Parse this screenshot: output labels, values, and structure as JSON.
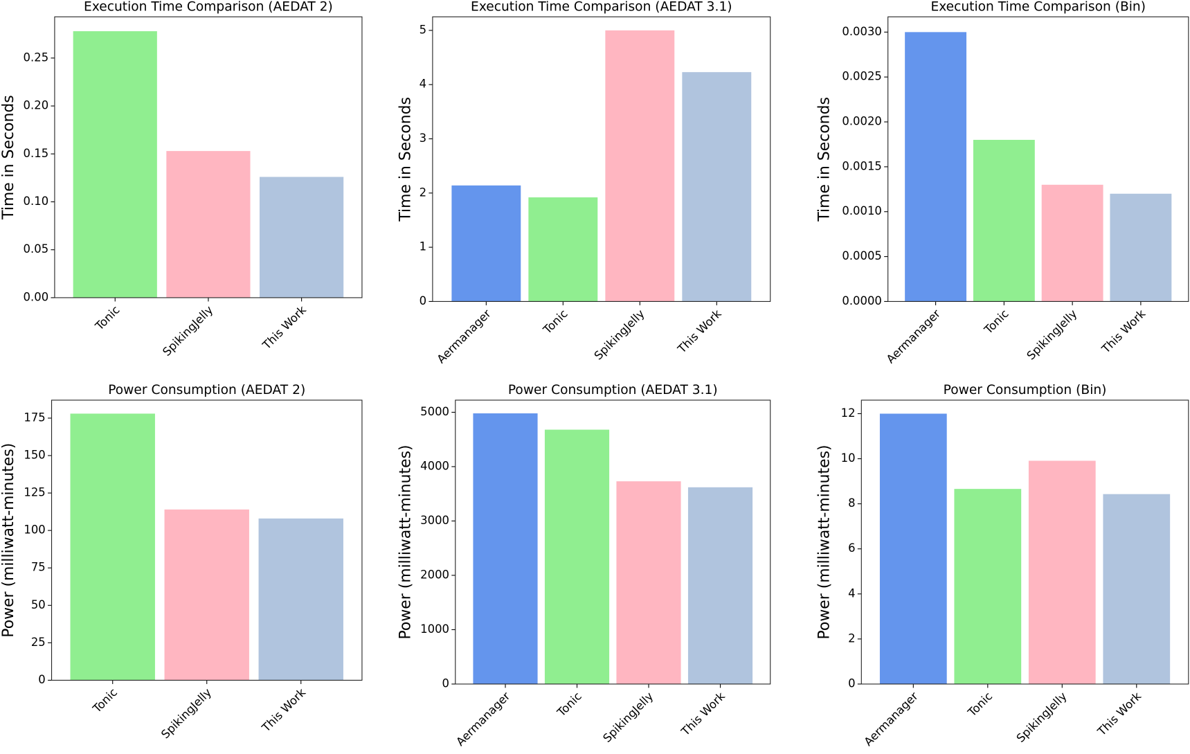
{
  "chart_data": [
    {
      "type": "bar",
      "title": "Execution Time Comparison (AEDAT 2)",
      "y_label": "Time in Seconds",
      "categories": [
        "Tonic",
        "SpikingJelly",
        "This Work"
      ],
      "values": [
        0.278,
        0.153,
        0.126
      ],
      "colors": [
        "#90ee90",
        "#ffb6c1",
        "#b0c4de"
      ],
      "ylim": [
        0,
        0.293
      ],
      "yticks": [
        {
          "value": 0,
          "label": "0.00"
        },
        {
          "value": 0.05,
          "label": "0.05"
        },
        {
          "value": 0.1,
          "label": "0.10"
        },
        {
          "value": 0.15,
          "label": "0.15"
        },
        {
          "value": 0.2,
          "label": "0.20"
        },
        {
          "value": 0.25,
          "label": "0.25"
        }
      ]
    },
    {
      "type": "bar",
      "title": "Execution Time Comparison (AEDAT 3.1)",
      "y_label": "Time in Seconds",
      "categories": [
        "Aermanager",
        "Tonic",
        "SpikingJelly",
        "This Work"
      ],
      "values": [
        2.14,
        1.92,
        5.0,
        4.23
      ],
      "colors": [
        "#6495ed",
        "#90ee90",
        "#ffb6c1",
        "#b0c4de"
      ],
      "ylim": [
        0,
        5.25
      ],
      "yticks": [
        0,
        1,
        2,
        3,
        4,
        5
      ]
    },
    {
      "type": "bar",
      "title": "Execution Time Comparison (Bin)",
      "y_label": "Time in Seconds",
      "categories": [
        "Aermanager",
        "Tonic",
        "SpikingJelly",
        "This Work"
      ],
      "values": [
        0.003,
        0.0018,
        0.0013,
        0.0012
      ],
      "colors": [
        "#6495ed",
        "#90ee90",
        "#ffb6c1",
        "#b0c4de"
      ],
      "ylim": [
        0,
        0.00317
      ],
      "yticks": [
        {
          "value": 0,
          "label": "0.0000"
        },
        {
          "value": 0.0005,
          "label": "0.0005"
        },
        {
          "value": 0.001,
          "label": "0.0010"
        },
        {
          "value": 0.0015,
          "label": "0.0015"
        },
        {
          "value": 0.002,
          "label": "0.0020"
        },
        {
          "value": 0.0025,
          "label": "0.0025"
        },
        {
          "value": 0.003,
          "label": "0.0030"
        }
      ]
    },
    {
      "type": "bar",
      "title": "Power Consumption (AEDAT 2)",
      "y_label": "Power (milliwatt-minutes)",
      "categories": [
        "Tonic",
        "SpikingJelly",
        "This Work"
      ],
      "values": [
        178,
        114,
        108
      ],
      "colors": [
        "#90ee90",
        "#ffb6c1",
        "#b0c4de"
      ],
      "ylim": [
        0,
        187
      ],
      "yticks": [
        0,
        25,
        50,
        75,
        100,
        125,
        150,
        175
      ]
    },
    {
      "type": "bar",
      "title": "Power Consumption (AEDAT 3.1)",
      "y_label": "Power (milliwatt-minutes)",
      "categories": [
        "Aermanager",
        "Tonic",
        "SpikingJelly",
        "This Work"
      ],
      "values": [
        4980,
        4680,
        3730,
        3620
      ],
      "colors": [
        "#6495ed",
        "#90ee90",
        "#ffb6c1",
        "#b0c4de"
      ],
      "ylim": [
        0,
        5223
      ],
      "yticks": [
        0,
        1000,
        2000,
        3000,
        4000,
        5000
      ]
    },
    {
      "type": "bar",
      "title": "Power Consumption (Bin)",
      "y_label": "Power (milliwatt-minutes)",
      "categories": [
        "Aermanager",
        "Tonic",
        "SpikingJelly",
        "This Work"
      ],
      "values": [
        12.0,
        8.66,
        9.91,
        8.43
      ],
      "colors": [
        "#6495ed",
        "#90ee90",
        "#ffb6c1",
        "#b0c4de"
      ],
      "ylim": [
        0,
        12.6
      ],
      "yticks": [
        0,
        2,
        4,
        6,
        8,
        10,
        12
      ]
    }
  ]
}
